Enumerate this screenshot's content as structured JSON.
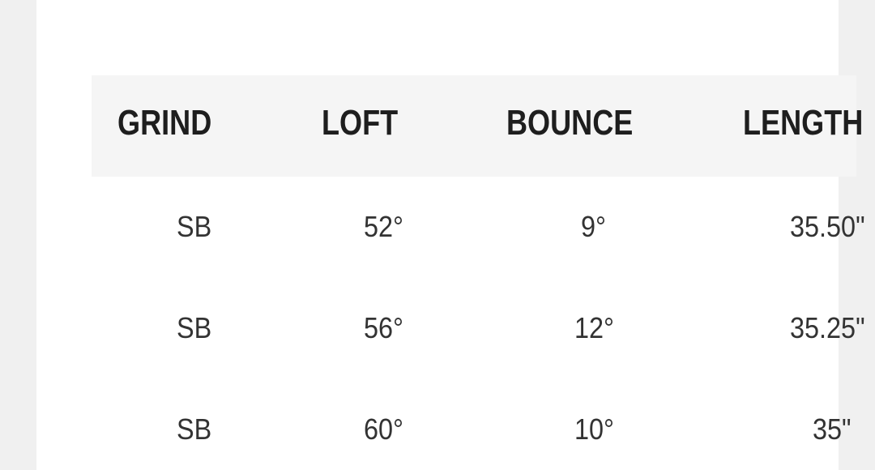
{
  "table": {
    "headers": [
      "GRIND",
      "LOFT",
      "BOUNCE",
      "LENGTH"
    ],
    "rows": [
      [
        "SB",
        "52°",
        "9°",
        "35.50\""
      ],
      [
        "SB",
        "56°",
        "12°",
        "35.25\""
      ],
      [
        "SB",
        "60°",
        "10°",
        "35\""
      ]
    ]
  },
  "colors": {
    "page_bg": "#f0f0f0",
    "panel_bg": "#ffffff",
    "header_bg": "#f5f5f5",
    "header_text": "#1e1e1e",
    "cell_text": "#333333"
  }
}
